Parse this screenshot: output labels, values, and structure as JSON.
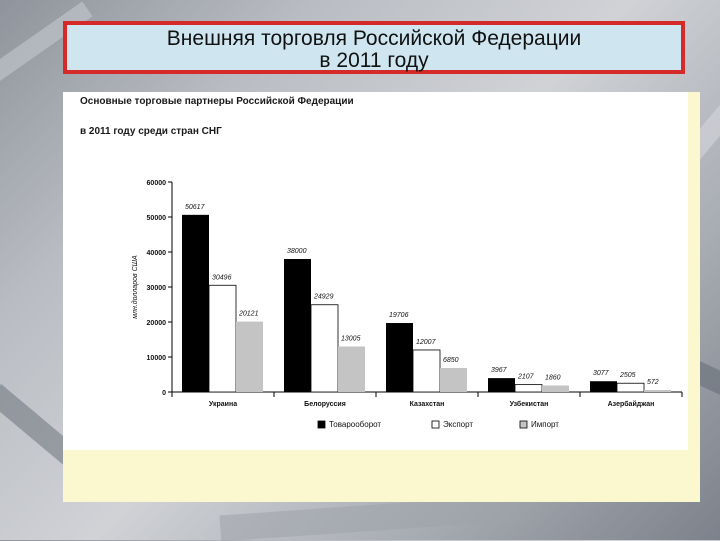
{
  "slide_title": {
    "line1": "Внешняя торговля Российской Федерации",
    "line2": "в 2011 году"
  },
  "chart_header": {
    "line1": "Основные торговые партнеры Российской Федерации",
    "line2": "в 2011 году среди стран СНГ"
  },
  "chart_data": {
    "type": "bar",
    "title": "",
    "ylabel": "млн.долларов США",
    "xlabel": "",
    "ylim": [
      0,
      60000
    ],
    "yticks": [
      0,
      10000,
      20000,
      30000,
      40000,
      50000,
      60000
    ],
    "ytick_labels": [
      "0",
      "10000",
      "20000",
      "30000",
      "40000",
      "50000",
      "60000"
    ],
    "categories": [
      "Украина",
      "Белоруссия",
      "Казахстан",
      "Узбекистан",
      "Азербайджан"
    ],
    "series": [
      {
        "name": "Товарооборот",
        "color": "#000000",
        "values": [
          50617,
          38000,
          19706,
          3967,
          3077
        ]
      },
      {
        "name": "Экспорт",
        "color": "#ffffff",
        "values": [
          30496,
          24929,
          12007,
          2107,
          2505
        ]
      },
      {
        "name": "Импорт",
        "color": "#c4c4c4",
        "values": [
          20121,
          13005,
          6850,
          1860,
          572
        ]
      }
    ],
    "data_labels": [
      [
        "50617",
        "30496",
        "20121"
      ],
      [
        "38000",
        "24929",
        "13005"
      ],
      [
        "19706",
        "12007",
        "6850"
      ],
      [
        "3967",
        "2107",
        "1860"
      ],
      [
        "3077",
        "2505",
        "572"
      ]
    ],
    "legend_position": "bottom",
    "grid": false
  }
}
